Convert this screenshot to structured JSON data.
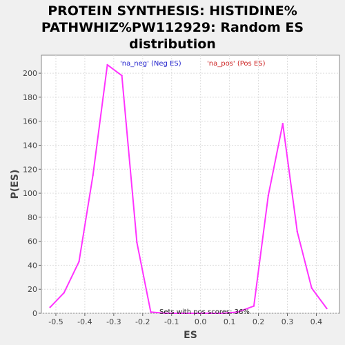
{
  "chart_data": {
    "type": "line",
    "title": "PROTEIN SYNTHESIS: HISTIDINE% PATHWHIZ%PW112929: Random ES distribution",
    "title_lines": [
      "PROTEIN SYNTHESIS: HISTIDINE%",
      "PATHWHIZ%PW112929: Random ES",
      "distribution"
    ],
    "xlabel": "ES",
    "ylabel": "P(ES)",
    "xlim": [
      -0.55,
      0.48
    ],
    "ylim": [
      0,
      215
    ],
    "xticks": [
      -0.5,
      -0.4,
      -0.3,
      -0.2,
      -0.1,
      0.0,
      0.1,
      0.2,
      0.3,
      0.4
    ],
    "xtick_labels": [
      "-0.5",
      "-0.4",
      "-0.3",
      "-0.2",
      "-0.1",
      "0.0",
      "0.1",
      "0.2",
      "0.3",
      "0.4"
    ],
    "yticks": [
      0,
      20,
      40,
      60,
      80,
      100,
      120,
      140,
      160,
      180,
      200
    ],
    "ytick_labels": [
      "0",
      "20",
      "40",
      "60",
      "80",
      "100",
      "120",
      "140",
      "160",
      "180",
      "200"
    ],
    "grid": true,
    "legend": [
      {
        "label": "'na_neg' (Neg ES)",
        "color": "#2222cc"
      },
      {
        "label": "'na_pos' (Pos ES)",
        "color": "#cc2222"
      }
    ],
    "legend_position": "top-center",
    "annotation": "Sets with pos scores: 36%",
    "series": [
      {
        "color": "#ff33ff",
        "x": [
          -0.52,
          -0.472,
          -0.42,
          -0.372,
          -0.322,
          -0.272,
          -0.22,
          -0.172,
          -0.122,
          -0.072,
          -0.022,
          0.028,
          0.078,
          0.128,
          0.184,
          0.234,
          0.284,
          0.334,
          0.384,
          0.436
        ],
        "y": [
          5,
          17,
          43,
          115,
          207,
          198,
          59,
          1,
          0,
          0,
          0,
          0,
          0,
          1,
          6,
          98,
          158,
          68,
          21,
          4
        ]
      }
    ]
  }
}
